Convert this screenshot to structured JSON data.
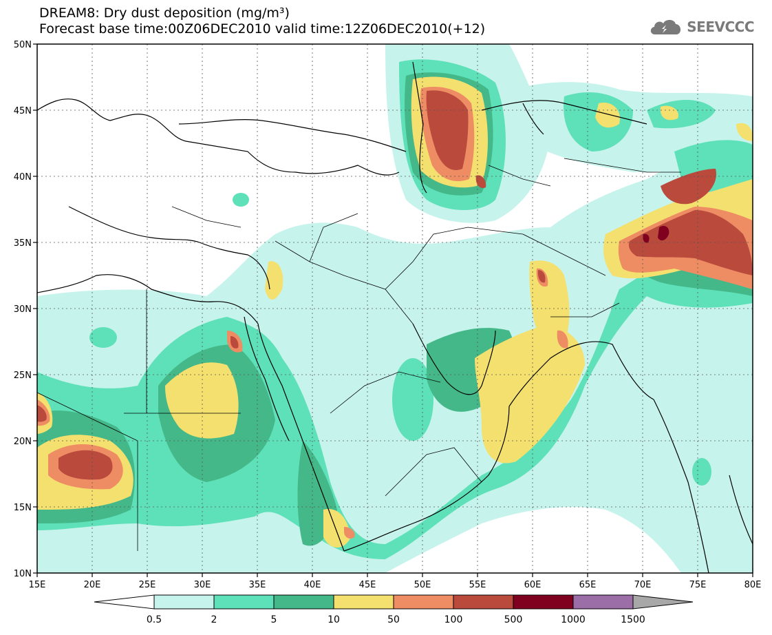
{
  "title_line1": "DREAM8: Dry dust deposition (mg/m³)",
  "title_line2": "Forecast base time:00Z06DEC2010 valid time:12Z06DEC2010(+12)",
  "logo": {
    "icon": "cloud-icon",
    "text": "SEEVCCC"
  },
  "map": {
    "lon_range": [
      15,
      80
    ],
    "lat_range": [
      10,
      50
    ],
    "lon_ticks": [
      "15E",
      "20E",
      "25E",
      "30E",
      "35E",
      "40E",
      "45E",
      "50E",
      "55E",
      "60E",
      "65E",
      "70E",
      "75E",
      "80E"
    ],
    "lat_ticks": [
      "10N",
      "15N",
      "20N",
      "25N",
      "30N",
      "35N",
      "40N",
      "45N",
      "50N"
    ],
    "grid": "dotted"
  },
  "colorbar": {
    "labels": [
      "0.5",
      "2",
      "5",
      "10",
      "50",
      "100",
      "500",
      "1000",
      "1500"
    ],
    "colors": [
      "#ffffff",
      "#c6f4ec",
      "#5ee0b8",
      "#44b889",
      "#f4e06e",
      "#ee8c64",
      "#b94a3c",
      "#800020",
      "#9b6ea8",
      "#a8a8a8"
    ]
  }
}
